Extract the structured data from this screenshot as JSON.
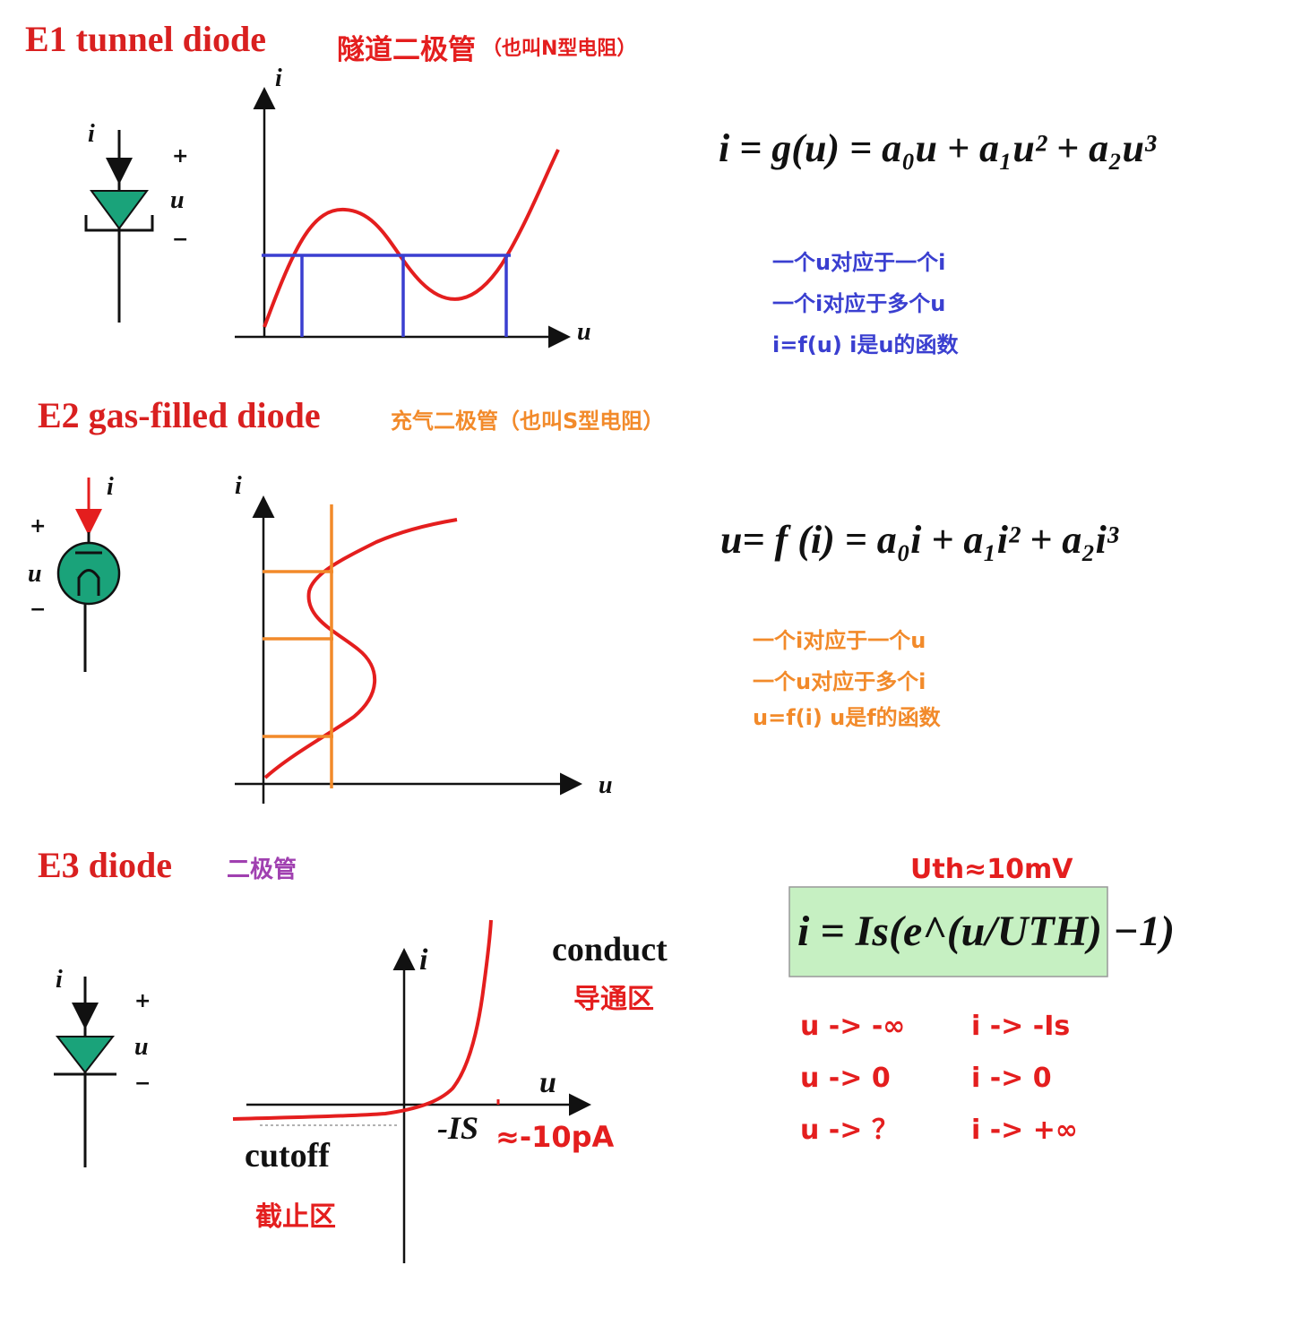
{
  "e1": {
    "title": "E1   tunnel diode",
    "cn_title": "隧道二极管",
    "cn_note": "（也叫N型电阻）",
    "formula": "i = g(u) = a₀u + a₁u² + a₂u³",
    "notes": [
      "一个u对应于一个i",
      "一个i对应于多个u",
      "i=f(u)  i是u的函数"
    ],
    "axis_i": "i",
    "axis_u": "u",
    "sym_i": "i",
    "sym_u": "u",
    "plus": "+",
    "minus": "−"
  },
  "e2": {
    "title": "E2   gas-filled diode",
    "cn_title": "充气二极管（也叫S型电阻）",
    "formula": "u= f (i) = a₀i + a₁i² + a₂i³",
    "notes": [
      "一个i对应于一个u",
      "一个u对应于多个i",
      "u=f(i)    u是f的函数"
    ],
    "axis_i": "i",
    "axis_u": "u",
    "sym_i": "i",
    "sym_u": "u",
    "plus": "+",
    "minus": "−"
  },
  "e3": {
    "title": "E3   diode",
    "cn_title": "二极管",
    "uth": "Uth≈10mV",
    "formula": "i = Is(e^(u/UTH) −1)",
    "conduct": "conduct",
    "conduct_cn": "导通区",
    "cutoff": "cutoff",
    "cutoff_cn": "截止区",
    "is_label": "-IS",
    "is_value": "≈-10pA",
    "limits_left": [
      "u -> -∞",
      "u -> 0",
      "u -> ？"
    ],
    "limits_right": [
      "i -> -Is",
      "i -> 0",
      "i -> +∞"
    ],
    "axis_i": "i",
    "axis_u": "u",
    "sym_i": "i",
    "sym_u": "u",
    "plus": "+",
    "minus": "−"
  },
  "colors": {
    "title_red": "#d92020",
    "curve_red": "#e41e1e",
    "blue": "#3a3fd0",
    "orange": "#f28a2a",
    "purple": "#a040b0",
    "diode_green": "#1aa37a",
    "formula_bg": "#c6f0c2"
  }
}
